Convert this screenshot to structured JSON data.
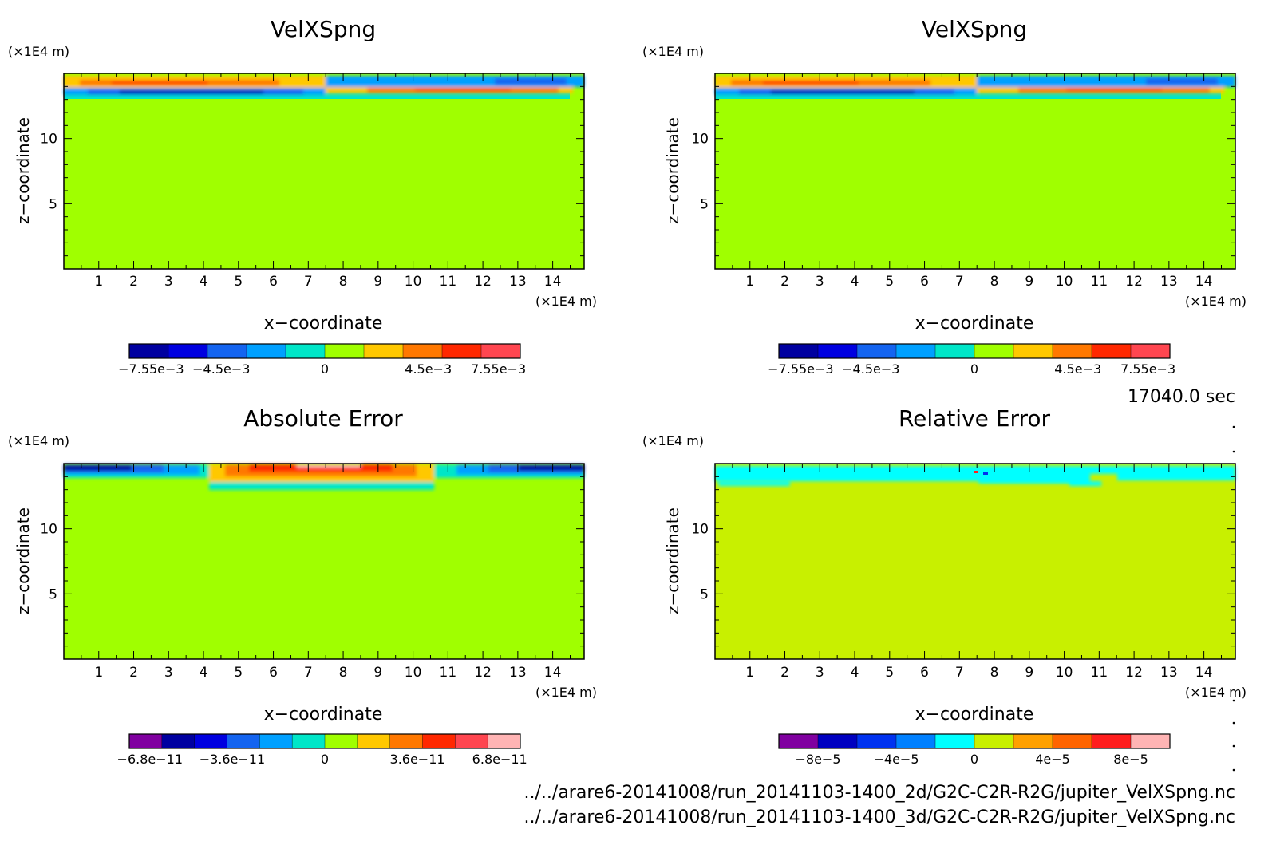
{
  "time_label": "17040.0 sec",
  "files": [
    "../../arare6-20141008/run_20141103-1400_2d/G2C-C2R-R2G/jupiter_VelXSpng.nc",
    "../../arare6-20141008/run_20141103-1400_3d/G2C-C2R-R2G/jupiter_VelXSpng.nc"
  ],
  "chart_data": [
    {
      "type": "heatmap",
      "title": "VelXSpng",
      "xlabel": "x−coordinate",
      "ylabel": "z−coordinate",
      "x_unit": "(×1E4 m)",
      "y_unit": "(×1E4 m)",
      "xlim": [
        0,
        14.9
      ],
      "ylim": [
        0,
        15
      ],
      "x_ticks": [
        "1",
        "2",
        "3",
        "4",
        "5",
        "6",
        "7",
        "8",
        "9",
        "10",
        "11",
        "12",
        "13",
        "14"
      ],
      "y_ticks": [
        "5",
        "10"
      ],
      "colorbar": {
        "colors": [
          "#0000a0",
          "#0000e0",
          "#1464f0",
          "#00a0ff",
          "#00e6c8",
          "#a0ff00",
          "#ffc800",
          "#ff7800",
          "#ff2800",
          "#ff4650"
        ],
        "tick_labels": [
          "−7.55e−3",
          "−4.5e−3",
          "0",
          "4.5e−3",
          "7.55e−3"
        ],
        "tick_values": [
          -0.00755,
          -0.0045,
          0,
          0.0045,
          0.00755
        ],
        "range": [
          -0.0085,
          0.0085
        ]
      }
    },
    {
      "type": "heatmap",
      "title": "VelXSpng",
      "xlabel": "x−coordinate",
      "ylabel": "z−coordinate",
      "x_unit": "(×1E4 m)",
      "y_unit": "(×1E4 m)",
      "xlim": [
        0,
        14.9
      ],
      "ylim": [
        0,
        15
      ],
      "x_ticks": [
        "1",
        "2",
        "3",
        "4",
        "5",
        "6",
        "7",
        "8",
        "9",
        "10",
        "11",
        "12",
        "13",
        "14"
      ],
      "y_ticks": [
        "5",
        "10"
      ],
      "colorbar": {
        "colors": [
          "#0000a0",
          "#0000e0",
          "#1464f0",
          "#00a0ff",
          "#00e6c8",
          "#a0ff00",
          "#ffc800",
          "#ff7800",
          "#ff2800",
          "#ff4650"
        ],
        "tick_labels": [
          "−7.55e−3",
          "−4.5e−3",
          "0",
          "4.5e−3",
          "7.55e−3"
        ],
        "tick_values": [
          -0.00755,
          -0.0045,
          0,
          0.0045,
          0.00755
        ],
        "range": [
          -0.0085,
          0.0085
        ]
      }
    },
    {
      "type": "heatmap",
      "title": "Absolute Error",
      "xlabel": "x−coordinate",
      "ylabel": "z−coordinate",
      "x_unit": "(×1E4 m)",
      "y_unit": "(×1E4 m)",
      "xlim": [
        0,
        14.9
      ],
      "ylim": [
        0,
        15
      ],
      "x_ticks": [
        "1",
        "2",
        "3",
        "4",
        "5",
        "6",
        "7",
        "8",
        "9",
        "10",
        "11",
        "12",
        "13",
        "14"
      ],
      "y_ticks": [
        "5",
        "10"
      ],
      "colorbar": {
        "colors": [
          "#8000a0",
          "#0000a0",
          "#0000e0",
          "#1464f0",
          "#00a0ff",
          "#00e6c8",
          "#a0ff00",
          "#ffc800",
          "#ff7800",
          "#ff2800",
          "#ff4650",
          "#ffb4b4"
        ],
        "tick_labels": [
          "−6.8e−11",
          "−3.6e−11",
          "0",
          "3.6e−11",
          "6.8e−11"
        ],
        "tick_values": [
          -6.8e-11,
          -3.6e-11,
          0,
          3.6e-11,
          6.8e-11
        ],
        "range": [
          -7.6e-11,
          7.6e-11
        ]
      }
    },
    {
      "type": "heatmap",
      "title": "Relative Error",
      "xlabel": "x−coordinate",
      "ylabel": "z−coordinate",
      "x_unit": "(×1E4 m)",
      "y_unit": "(×1E4 m)",
      "xlim": [
        0,
        14.9
      ],
      "ylim": [
        0,
        15
      ],
      "x_ticks": [
        "1",
        "2",
        "3",
        "4",
        "5",
        "6",
        "7",
        "8",
        "9",
        "10",
        "11",
        "12",
        "13",
        "14"
      ],
      "y_ticks": [
        "5",
        "10"
      ],
      "colorbar": {
        "colors": [
          "#8000a0",
          "#0000c0",
          "#0032f0",
          "#0080ff",
          "#00ffff",
          "#c8f000",
          "#ffa000",
          "#ff6400",
          "#ff1e1e",
          "#ffb4b4"
        ],
        "tick_labels": [
          "−8e−5",
          "−4e−5",
          "0",
          "4e−5",
          "8e−5"
        ],
        "tick_values": [
          -8e-05,
          -4e-05,
          0,
          4e-05,
          8e-05
        ],
        "range": [
          -0.0001,
          0.0001
        ]
      }
    }
  ]
}
